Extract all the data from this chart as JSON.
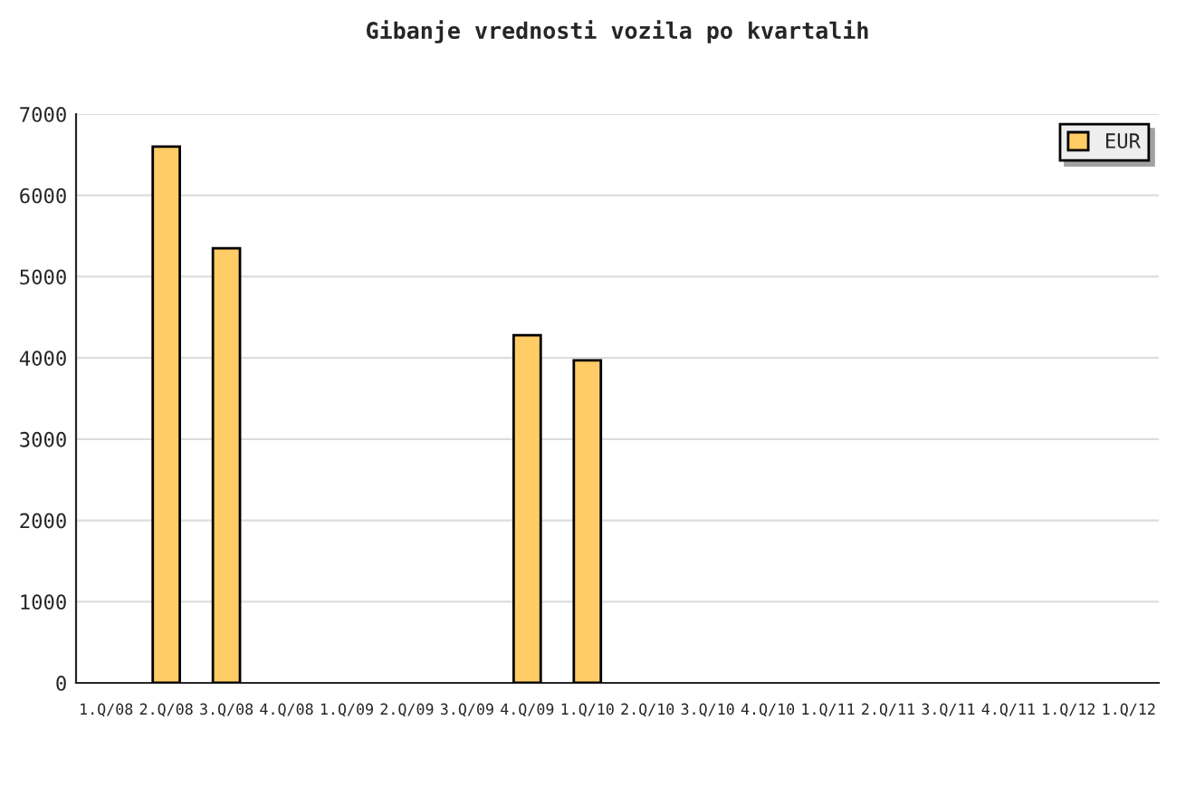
{
  "chart_data": {
    "type": "bar",
    "title": "Gibanje vrednosti vozila po kvartalih",
    "categories": [
      "1.Q/08",
      "2.Q/08",
      "3.Q/08",
      "4.Q/08",
      "1.Q/09",
      "2.Q/09",
      "3.Q/09",
      "4.Q/09",
      "1.Q/10",
      "2.Q/10",
      "3.Q/10",
      "4.Q/10",
      "1.Q/11",
      "2.Q/11",
      "3.Q/11",
      "4.Q/11",
      "1.Q/12",
      "1.Q/12"
    ],
    "series": [
      {
        "name": "EUR",
        "color": "#ffcc66",
        "values": [
          null,
          6600,
          5350,
          null,
          null,
          null,
          null,
          4280,
          3970,
          null,
          null,
          null,
          null,
          null,
          null,
          null,
          null,
          null
        ]
      }
    ],
    "ylim": [
      0,
      7000
    ],
    "yticks": [
      0,
      1000,
      2000,
      3000,
      4000,
      5000,
      6000,
      7000
    ],
    "grid": "y",
    "legend": "top right"
  }
}
